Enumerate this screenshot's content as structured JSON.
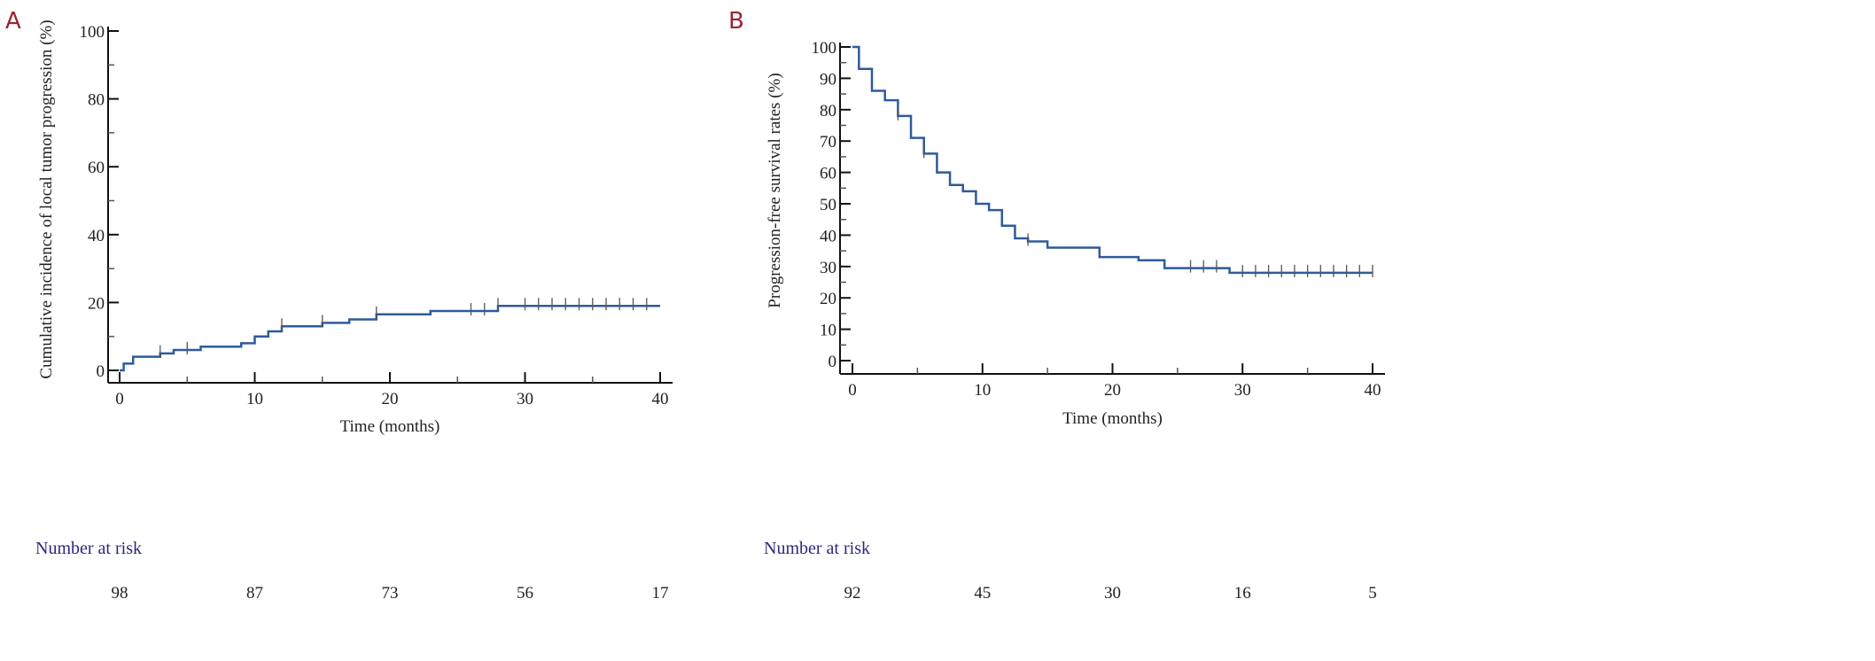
{
  "chart_data": [
    {
      "panel": "A",
      "type": "line",
      "step": true,
      "xlabel": "Time (months)",
      "ylabel": "Cumulative incidence of local tumor progression (%)",
      "xlim": [
        0,
        40
      ],
      "ylim": [
        0,
        100
      ],
      "xticks": [
        0,
        10,
        20,
        30,
        40
      ],
      "yticks": [
        0,
        20,
        40,
        60,
        80,
        100
      ],
      "color": "#2e5b9a",
      "steps": [
        [
          0,
          0
        ],
        [
          0.3,
          2
        ],
        [
          1,
          4
        ],
        [
          3,
          5
        ],
        [
          4,
          6
        ],
        [
          6,
          7
        ],
        [
          9,
          8
        ],
        [
          10,
          10
        ],
        [
          11,
          11.5
        ],
        [
          12,
          13
        ],
        [
          15,
          14
        ],
        [
          17,
          15
        ],
        [
          19,
          16.5
        ],
        [
          23,
          17.5
        ],
        [
          28,
          19
        ],
        [
          40,
          19
        ]
      ],
      "censored": [
        3,
        5,
        12,
        15,
        19,
        26,
        27,
        28,
        30,
        31,
        32,
        33,
        34,
        35,
        36,
        37,
        38,
        39
      ],
      "risk_title": "Number at risk",
      "risk_times": [
        0,
        10,
        20,
        30,
        40
      ],
      "risk_values": [
        "98",
        "87",
        "73",
        "56",
        "17"
      ]
    },
    {
      "panel": "B",
      "type": "line",
      "step": true,
      "xlabel": "Time (months)",
      "ylabel": "Progression-free survival rates (%)",
      "xlim": [
        0,
        40
      ],
      "ylim": [
        0,
        100
      ],
      "xticks": [
        0,
        10,
        20,
        30,
        40
      ],
      "yticks": [
        0,
        10,
        20,
        30,
        40,
        50,
        60,
        70,
        80,
        90,
        100
      ],
      "color": "#2e5b9a",
      "steps": [
        [
          0,
          100
        ],
        [
          0.5,
          93
        ],
        [
          1.5,
          86
        ],
        [
          2.5,
          83
        ],
        [
          3.5,
          78
        ],
        [
          4.5,
          71
        ],
        [
          5.5,
          66
        ],
        [
          6.5,
          60
        ],
        [
          7.5,
          56
        ],
        [
          8.5,
          54
        ],
        [
          9.5,
          50
        ],
        [
          10.5,
          48
        ],
        [
          11.5,
          43
        ],
        [
          12.5,
          39
        ],
        [
          13.5,
          38
        ],
        [
          15,
          36
        ],
        [
          19,
          33
        ],
        [
          22,
          32
        ],
        [
          24,
          29.5
        ],
        [
          29,
          28
        ],
        [
          40,
          28
        ]
      ],
      "censored": [
        3.5,
        5.5,
        13.5,
        26,
        27,
        28,
        30,
        31,
        32,
        33,
        34,
        35,
        36,
        37,
        38,
        39,
        40
      ],
      "risk_title": "Number at risk",
      "risk_times": [
        0,
        10,
        20,
        30,
        40
      ],
      "risk_values": [
        "92",
        "45",
        "30",
        "16",
        "5"
      ]
    }
  ]
}
